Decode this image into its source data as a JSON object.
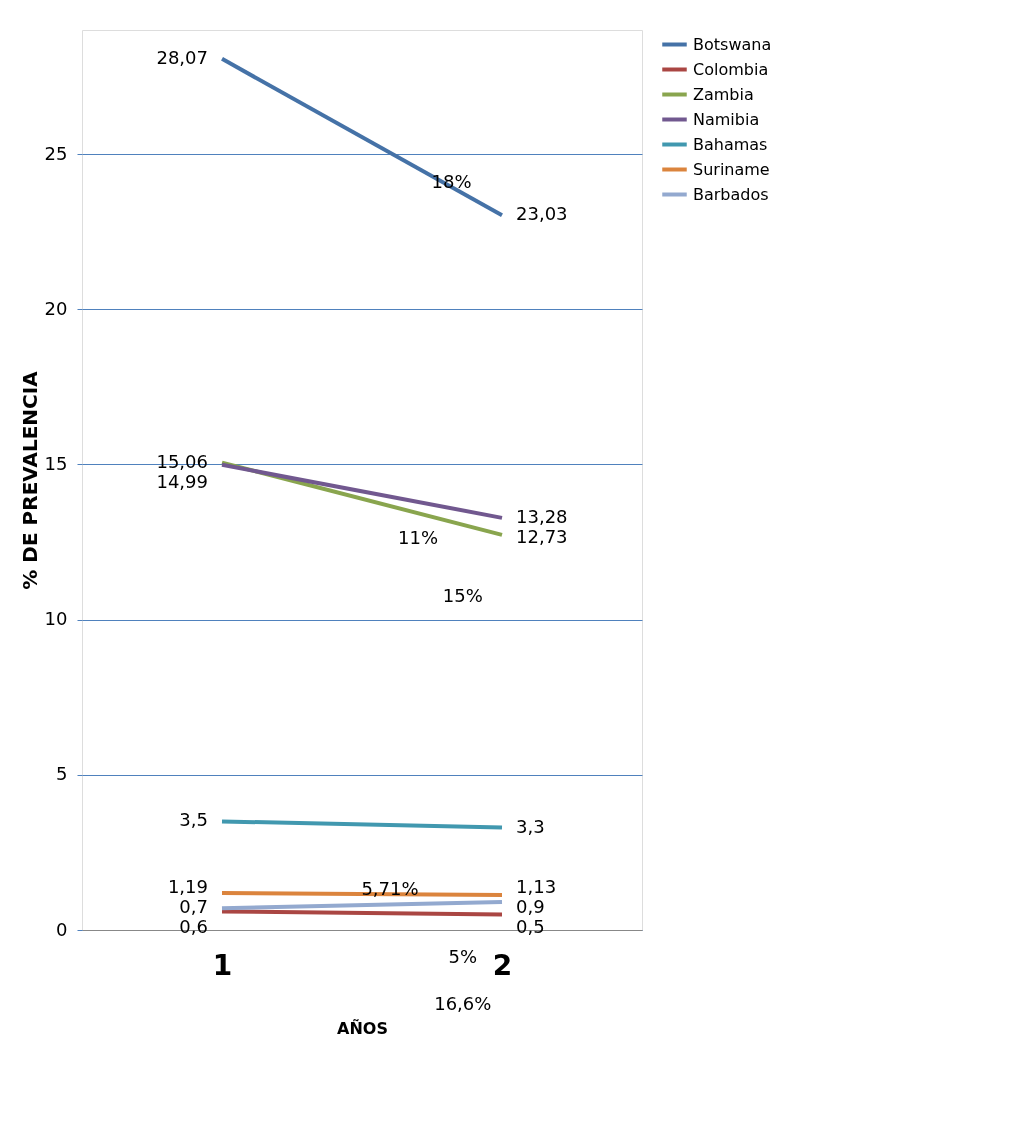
{
  "chart_data": {
    "type": "line",
    "xlabel": "AÑOS",
    "ylabel": "% DE PREVALENCIA",
    "categories": [
      "1",
      "2"
    ],
    "series": [
      {
        "name": "Botswana",
        "color": "#4572a7",
        "values": [
          28.07,
          23.03
        ],
        "value_labels": [
          "28,07",
          "23,03"
        ]
      },
      {
        "name": "Colombia",
        "color": "#aa4643",
        "values": [
          0.6,
          0.5
        ],
        "value_labels": [
          "0,6",
          "0,5"
        ]
      },
      {
        "name": "Zambia",
        "color": "#89a54e",
        "values": [
          15.06,
          12.73
        ],
        "value_labels": [
          "15,06",
          "12,73"
        ]
      },
      {
        "name": "Namibia",
        "color": "#71588f",
        "values": [
          14.99,
          13.28
        ],
        "value_labels": [
          "14,99",
          "13,28"
        ]
      },
      {
        "name": "Bahamas",
        "color": "#4198af",
        "values": [
          3.5,
          3.3
        ],
        "value_labels": [
          "3,5",
          "3,3"
        ]
      },
      {
        "name": "Suriname",
        "color": "#db843d",
        "values": [
          1.19,
          1.13
        ],
        "value_labels": [
          "1,19",
          "1,13"
        ]
      },
      {
        "name": "Barbados",
        "color": "#93a9cf",
        "values": [
          0.7,
          0.9
        ],
        "value_labels": [
          "0,7",
          "0,9"
        ]
      }
    ],
    "ylim": [
      0,
      29
    ],
    "yticks": [
      0,
      5,
      10,
      15,
      20,
      25
    ],
    "grid": "y",
    "legend": "right",
    "marker": "none",
    "line_style": "solid",
    "annotations": [
      "18%",
      "11%",
      "15%",
      "5,71%",
      "5%",
      "16,6%"
    ]
  }
}
